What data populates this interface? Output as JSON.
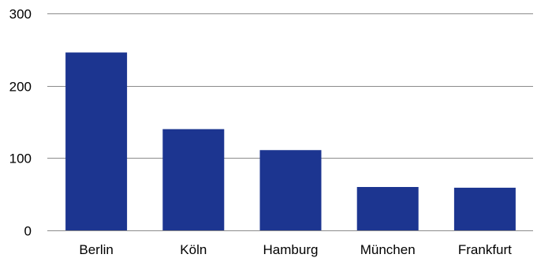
{
  "chart_data": {
    "type": "bar",
    "title": "",
    "xlabel": "",
    "ylabel": "",
    "categories": [
      "Berlin",
      "Köln",
      "Hamburg",
      "München",
      "Frankfurt"
    ],
    "values": [
      246,
      140,
      111,
      60,
      59
    ],
    "ylim": [
      0,
      300
    ],
    "yticks": [
      "0",
      "100",
      "200",
      "300"
    ],
    "grid": true,
    "legend": "none",
    "bar_color": "#1c3590"
  }
}
